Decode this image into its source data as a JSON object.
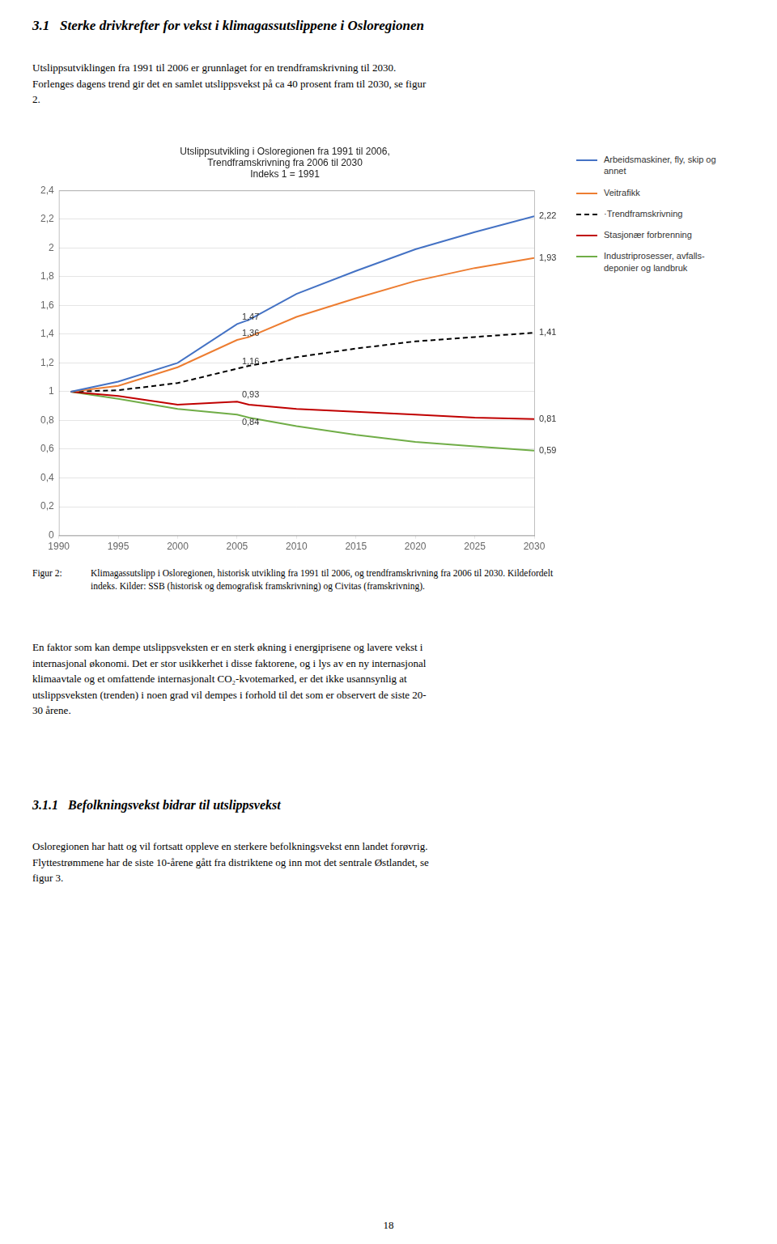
{
  "page_title": "3.1   Sterke drivkrefter for vekst i klimagassutslippene i Osloregionen",
  "intro_text": "Utslippsutviklingen fra 1991 til 2006 er grunnlaget for en trendframskrivning til 2030.\nForlenges dagens trend gir det en samlet utslippsvekst på ca 40 prosent fram til 2030, se figur\n2.",
  "chart_data": {
    "type": "line",
    "title": "Utslippsutvikling i Osloregionen fra 1991 til 2006,\nTrendframskrivning fra 2006 til 2030\nIndeks 1 = 1991",
    "x": [
      1991,
      1995,
      2000,
      2005,
      2006,
      2010,
      2015,
      2020,
      2025,
      2030
    ],
    "series": [
      {
        "name": "Arbeidsmaskiner, fly, skip og\nannet",
        "color": "#4472C4",
        "line_style": "solid",
        "values": [
          1.0,
          1.07,
          1.2,
          1.47,
          1.5,
          1.68,
          1.84,
          1.99,
          2.11,
          2.22
        ]
      },
      {
        "name": "Veitrafikk",
        "color": "#ED7D31",
        "line_style": "solid",
        "values": [
          1.0,
          1.04,
          1.17,
          1.36,
          1.38,
          1.52,
          1.65,
          1.77,
          1.86,
          1.93
        ]
      },
      {
        "name": "·Trendframskrivning",
        "color": "#000000",
        "line_style": "dashed",
        "values": [
          1.0,
          1.01,
          1.06,
          1.16,
          1.18,
          1.24,
          1.3,
          1.35,
          1.38,
          1.41
        ]
      },
      {
        "name": "Stasjonær forbrenning",
        "color": "#C00000",
        "line_style": "solid",
        "values": [
          1.0,
          0.97,
          0.91,
          0.93,
          0.91,
          0.88,
          0.86,
          0.84,
          0.82,
          0.81
        ]
      },
      {
        "name": "Industriprosesser, avfalls-\ndeponier og landbruk",
        "color": "#70AD47",
        "line_style": "solid",
        "values": [
          1.0,
          0.95,
          0.88,
          0.84,
          0.82,
          0.76,
          0.7,
          0.65,
          0.62,
          0.59
        ]
      }
    ],
    "xlim": [
      1990,
      2030
    ],
    "xticks": [
      1990,
      1995,
      2000,
      2005,
      2010,
      2015,
      2020,
      2025,
      2030
    ],
    "ylim": [
      0,
      2.4
    ],
    "yticks": [
      0,
      {
        "value": 0.2,
        "label": "0,2"
      },
      {
        "value": 0.4,
        "label": "0,4"
      },
      {
        "value": 0.6,
        "label": "0,6"
      },
      {
        "value": 0.8,
        "label": "0,8"
      },
      1,
      {
        "value": 1.2,
        "label": "1,2"
      },
      {
        "value": 1.4,
        "label": "1,4"
      },
      {
        "value": 1.6,
        "label": "1,6"
      },
      {
        "value": 1.8,
        "label": "1,8"
      },
      2,
      {
        "value": 2.2,
        "label": "2,2"
      },
      {
        "value": 2.4,
        "label": "2,4"
      }
    ],
    "grid": "y",
    "legend": "right",
    "annotations": [
      {
        "x": 2005,
        "y": 1.47,
        "text": "1,47"
      },
      {
        "x": 2005,
        "y": 1.36,
        "text": "1,36"
      },
      {
        "x": 2005,
        "y": 1.16,
        "text": "1,16"
      },
      {
        "x": 2005,
        "y": 0.93,
        "text": "0,93"
      },
      {
        "x": 2005,
        "y": 0.84,
        "text": "0,84"
      },
      {
        "x": 2030,
        "y": 2.22,
        "text": "2,22"
      },
      {
        "x": 2030,
        "y": 1.93,
        "text": "1,93"
      },
      {
        "x": 2030,
        "y": 1.41,
        "text": "1,41"
      },
      {
        "x": 2030,
        "y": 0.81,
        "text": "0,81"
      },
      {
        "x": 2030,
        "y": 0.59,
        "text": "0,59"
      }
    ]
  },
  "caption_label": "Figur 2:",
  "caption_text": "Klimagassutslipp i Osloregionen, historisk utvikling fra 1991 til 2006, og trendframskrivning fra 2006 til 2030. Kildefordelt\nindeks. Kilder: SSB (historisk og demografisk framskrivning) og Civitas (framskrivning).",
  "body_text": "En faktor som kan dempe utslippsveksten er en sterk økning i energiprisene og lavere vekst i\ninternasjonal økonomi. Det er stor usikkerhet i disse faktorene, og i lys av en ny internasjonal\nklimaavtale og et omfattende internasjonalt CO₂-kvotemarked, er det ikke usannsynlig at\nutslippsveksten (trenden) i noen grad vil dempes i forhold til det som er observert de siste 20-\n30 årene.",
  "section_title": "3.1.1   Befolkningsvekst bidrar til utslippsvekst",
  "section_text": "Osloregionen har hatt og vil fortsatt oppleve en sterkere befolkningsvekst enn landet forøvrig.\nFlyttestrømmene har de siste 10-årene gått fra distriktene og inn mot det sentrale Østlandet, se\nfigur 3.",
  "page_number": "18"
}
